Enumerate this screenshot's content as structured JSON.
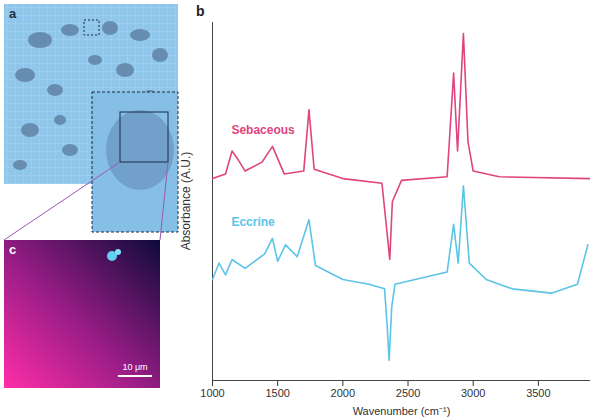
{
  "chart_data": {
    "type": "line",
    "panel": "b",
    "x_label": "Wavenumber (cm⁻¹)",
    "y_label": "Absorbance (A.U.)",
    "xlim": [
      1000,
      3900
    ],
    "xticks": [
      1000,
      1500,
      2000,
      2500,
      3000,
      3500
    ],
    "ylim": [
      0,
      100
    ],
    "tick_labels": "x",
    "grid": false,
    "series": [
      {
        "name": "Sebaceous",
        "color": "#e0447f",
        "x": [
          1000,
          1100,
          1150,
          1200,
          1250,
          1380,
          1460,
          1550,
          1700,
          1740,
          1780,
          2000,
          2300,
          2340,
          2360,
          2380,
          2450,
          2800,
          2850,
          2880,
          2925,
          2960,
          3000,
          3200,
          3900
        ],
        "values": [
          56.4,
          57.7,
          64.1,
          61.5,
          58.5,
          61.0,
          65.4,
          57.7,
          58.5,
          75.6,
          59.0,
          56.4,
          55.1,
          41.0,
          33.8,
          50.0,
          55.9,
          56.9,
          85.9,
          64.1,
          96.9,
          66.7,
          58.5,
          56.9,
          56.4
        ]
      },
      {
        "name": "Eccrine",
        "color": "#5cc4e6",
        "x": [
          1000,
          1050,
          1100,
          1150,
          1250,
          1400,
          1460,
          1500,
          1560,
          1650,
          1740,
          1790,
          2000,
          2200,
          2320,
          2340,
          2355,
          2375,
          2400,
          2800,
          2850,
          2885,
          2925,
          2970,
          3100,
          3300,
          3600,
          3800,
          3880
        ],
        "values": [
          28.2,
          32.8,
          29.5,
          33.8,
          31.3,
          35.4,
          39.7,
          33.3,
          37.9,
          34.6,
          44.9,
          32.1,
          28.2,
          26.9,
          25.6,
          15.4,
          5.6,
          20.5,
          26.9,
          30.3,
          43.6,
          32.8,
          54.4,
          32.8,
          28.2,
          25.6,
          24.4,
          26.9,
          37.9
        ]
      }
    ]
  },
  "figure": {
    "panel_a": {
      "label": "a"
    },
    "panel_c": {
      "label": "c",
      "scale_bar_label": "10 μm"
    }
  }
}
